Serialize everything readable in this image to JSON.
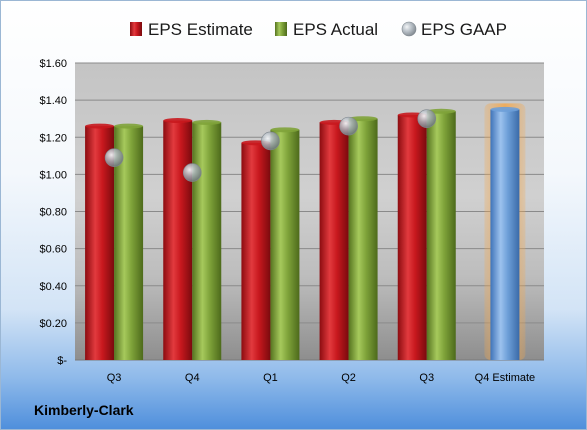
{
  "company": "Kimberly-Clark",
  "chart_data": {
    "type": "bar",
    "categories": [
      "Q3",
      "Q4",
      "Q1",
      "Q2",
      "Q3",
      "Q4 Estimate"
    ],
    "series": [
      {
        "name": "EPS Estimate",
        "type": "bar",
        "values": [
          1.26,
          1.29,
          1.17,
          1.28,
          1.32,
          null
        ],
        "color": "#c8181e"
      },
      {
        "name": "EPS Actual",
        "type": "bar",
        "values": [
          1.26,
          1.28,
          1.24,
          1.3,
          1.34,
          null
        ],
        "color": "#7fa33a"
      },
      {
        "name": "EPS GAAP",
        "type": "scatter",
        "values": [
          1.09,
          1.01,
          1.18,
          1.26,
          1.3,
          null
        ],
        "color": "#9aa7b2"
      },
      {
        "name": "",
        "type": "bar",
        "values": [
          null,
          null,
          null,
          null,
          null,
          1.35
        ],
        "color": "#6d9fd8",
        "highlight": "#f6a84a"
      }
    ],
    "yticks": [
      "$-",
      "$0.20",
      "$0.40",
      "$0.60",
      "$0.80",
      "$1.00",
      "$1.20",
      "$1.40",
      "$1.60"
    ],
    "ylim": [
      0,
      1.6
    ],
    "grid": true,
    "legend": "top"
  }
}
